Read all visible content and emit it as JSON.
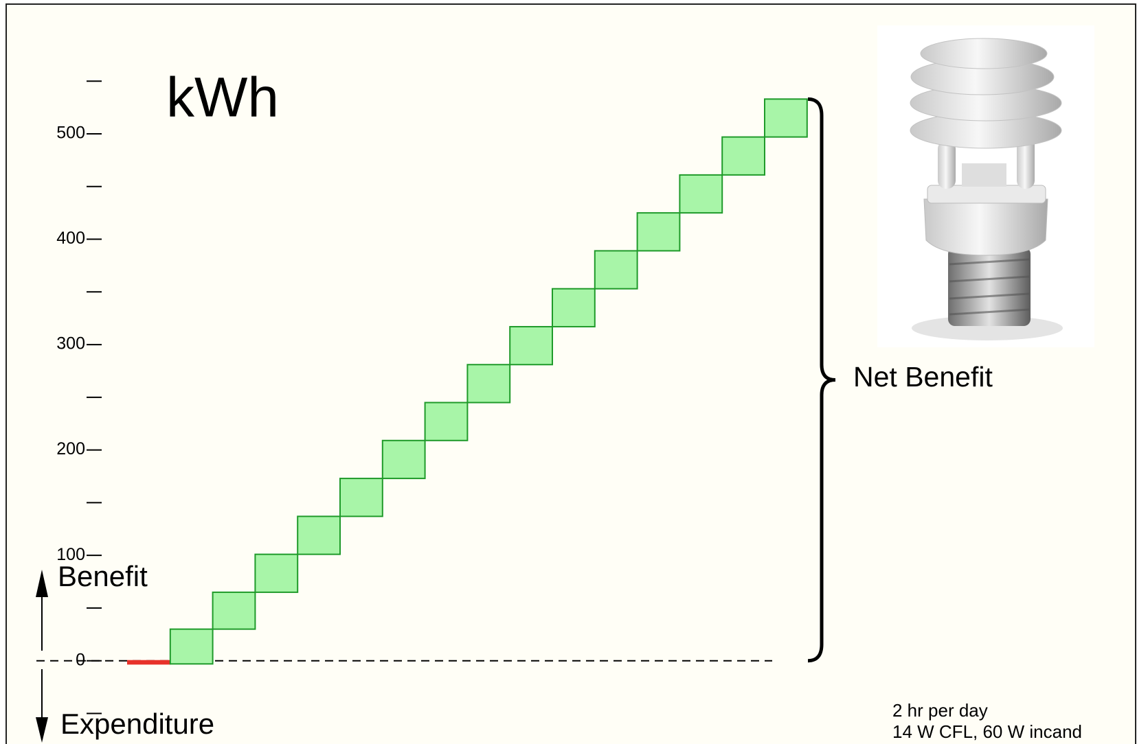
{
  "chart_data": {
    "type": "waterfall",
    "title": "kWh",
    "annotations": {
      "benefit": "Benefit",
      "expenditure": "Expenditure",
      "net": "Net Benefit",
      "notes": [
        "2 hr per day",
        "14 W CFL, 60 W incand"
      ]
    },
    "values": [
      -3,
      33,
      35,
      36,
      36,
      36,
      36,
      36,
      36,
      36,
      36,
      36,
      36,
      36,
      36,
      36
    ],
    "colors": {
      "negative": "#e8322a",
      "positive": "#a8f5a8",
      "positive_edge": "#1f9a2a"
    },
    "ylim": [
      -79,
      627
    ],
    "yticks": [
      0,
      100,
      200,
      300,
      400,
      500
    ],
    "minor_yticks": [
      -50,
      50,
      150,
      250,
      350,
      450,
      550
    ],
    "baseline_dashed": true
  }
}
